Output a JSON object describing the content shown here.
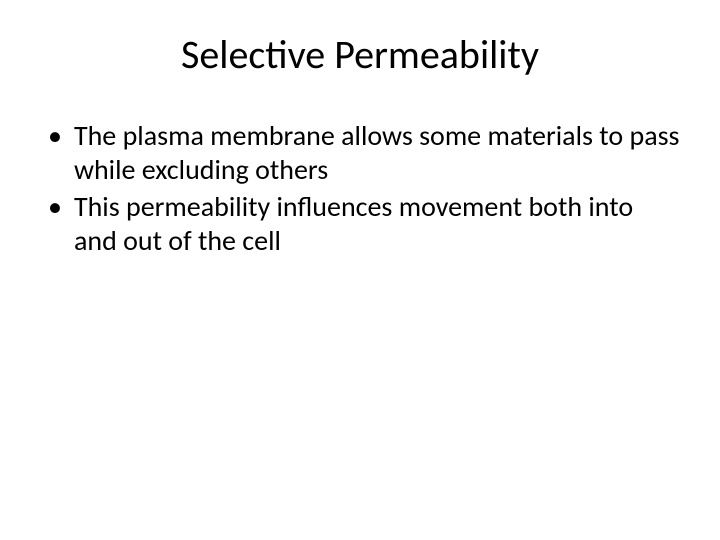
{
  "slide": {
    "title": "Selective Permeability",
    "bullets": [
      {
        "marker": "•",
        "text": "The plasma membrane allows some materials to pass while excluding others"
      },
      {
        "marker": "•",
        "text": "This permeability influences movement both into and out of the cell"
      }
    ]
  },
  "style": {
    "title_fontsize": 40,
    "bullet_fontsize": 28,
    "background_color": "#ffffff",
    "text_color": "#000000",
    "font_family": "Calibri"
  }
}
